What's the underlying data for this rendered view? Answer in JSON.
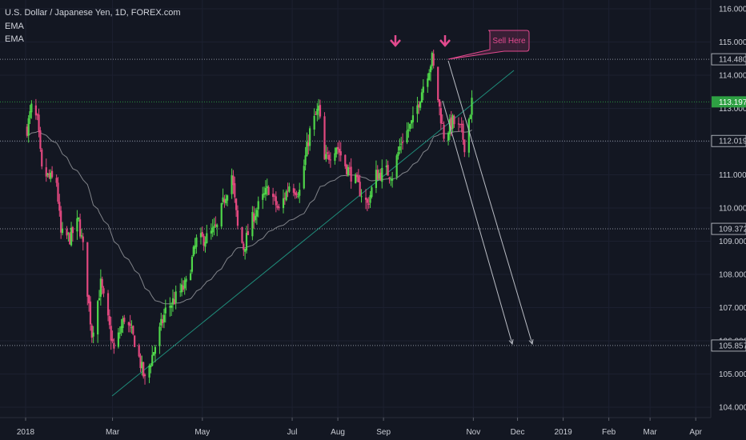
{
  "header": {
    "title": "U.S. Dollar / Japanese Yen, 1D, FOREX.com",
    "indicator1": "EMA",
    "indicator2": "EMA"
  },
  "colors": {
    "background": "#131722",
    "up_candle": "#4fd64a",
    "down_candle": "#e2487f",
    "ema_line": "#8d8f95",
    "trendline": "#1f8c7a",
    "level_line": "#9aa0ab",
    "green_level": "#2ea043",
    "annotation": "#e24a8e",
    "projection_arrow": "#b9bcc4"
  },
  "annotation": {
    "callout_text": "Sell Here",
    "markers": [
      "down-arrow",
      "down-arrow"
    ]
  },
  "chart_data": {
    "type": "candlestick",
    "title": "U.S. Dollar / Japanese Yen, 1D, FOREX.com",
    "y_axis": {
      "ticks": [
        104.0,
        105.0,
        106.0,
        107.0,
        108.0,
        109.0,
        110.0,
        111.0,
        112.0,
        113.0,
        114.0,
        115.0,
        116.0
      ],
      "tick_labels": [
        "104.000",
        "105.000",
        "106.000",
        "107.000",
        "108.000",
        "109.000",
        "110.000",
        "111.000",
        "112.000",
        "113.000",
        "114.000",
        "115.000",
        "116.000"
      ],
      "range": [
        103.8,
        116.25
      ]
    },
    "x_axis": {
      "tick_labels": [
        "2018",
        "Mar",
        "May",
        "Jul",
        "Aug",
        "Sep",
        "Nov",
        "Dec",
        "2019",
        "Feb",
        "Mar",
        "Apr"
      ]
    },
    "price_levels": [
      {
        "value": 114.48,
        "label": "114.480",
        "style": "dotted",
        "color": "grey"
      },
      {
        "value": 113.197,
        "label": "113.197",
        "style": "dotted",
        "color": "green",
        "badge": true
      },
      {
        "value": 112.019,
        "label": "112.019",
        "style": "dotted",
        "color": "grey"
      },
      {
        "value": 109.372,
        "label": "109.372",
        "style": "dotted",
        "color": "grey"
      },
      {
        "value": 105.857,
        "label": "105.857",
        "style": "dotted",
        "color": "grey"
      }
    ],
    "close_path": [
      {
        "date": "2018-01-02",
        "close": 112.4
      },
      {
        "date": "2018-01-05",
        "close": 113.0
      },
      {
        "date": "2018-01-09",
        "close": 112.6
      },
      {
        "date": "2018-01-12",
        "close": 111.1
      },
      {
        "date": "2018-01-17",
        "close": 110.9
      },
      {
        "date": "2018-01-22",
        "close": 110.8
      },
      {
        "date": "2018-01-25",
        "close": 109.2
      },
      {
        "date": "2018-01-31",
        "close": 109.1
      },
      {
        "date": "2018-02-06",
        "close": 109.6
      },
      {
        "date": "2018-02-09",
        "close": 108.8
      },
      {
        "date": "2018-02-15",
        "close": 106.2
      },
      {
        "date": "2018-02-21",
        "close": 107.7
      },
      {
        "date": "2018-03-02",
        "close": 105.7
      },
      {
        "date": "2018-03-09",
        "close": 106.7
      },
      {
        "date": "2018-03-16",
        "close": 106.0
      },
      {
        "date": "2018-03-23",
        "close": 104.8
      },
      {
        "date": "2018-03-27",
        "close": 105.4
      },
      {
        "date": "2018-04-06",
        "close": 106.9
      },
      {
        "date": "2018-04-13",
        "close": 107.3
      },
      {
        "date": "2018-04-20",
        "close": 107.7
      },
      {
        "date": "2018-04-27",
        "close": 109.0
      },
      {
        "date": "2018-05-04",
        "close": 109.1
      },
      {
        "date": "2018-05-11",
        "close": 109.4
      },
      {
        "date": "2018-05-16",
        "close": 110.3
      },
      {
        "date": "2018-05-21",
        "close": 111.0
      },
      {
        "date": "2018-05-25",
        "close": 109.4
      },
      {
        "date": "2018-05-29",
        "close": 108.8
      },
      {
        "date": "2018-06-05",
        "close": 109.8
      },
      {
        "date": "2018-06-15",
        "close": 110.6
      },
      {
        "date": "2018-06-22",
        "close": 109.9
      },
      {
        "date": "2018-06-29",
        "close": 110.7
      },
      {
        "date": "2018-07-06",
        "close": 110.5
      },
      {
        "date": "2018-07-13",
        "close": 112.3
      },
      {
        "date": "2018-07-19",
        "close": 113.0
      },
      {
        "date": "2018-07-23",
        "close": 111.4
      },
      {
        "date": "2018-07-31",
        "close": 111.9
      },
      {
        "date": "2018-08-06",
        "close": 111.3
      },
      {
        "date": "2018-08-13",
        "close": 110.8
      },
      {
        "date": "2018-08-21",
        "close": 110.1
      },
      {
        "date": "2018-08-27",
        "close": 111.0
      },
      {
        "date": "2018-09-03",
        "close": 111.1
      },
      {
        "date": "2018-09-07",
        "close": 111.0
      },
      {
        "date": "2018-09-13",
        "close": 112.0
      },
      {
        "date": "2018-09-21",
        "close": 112.6
      },
      {
        "date": "2018-09-28",
        "close": 113.7
      },
      {
        "date": "2018-10-04",
        "close": 114.5
      },
      {
        "date": "2018-10-09",
        "close": 113.0
      },
      {
        "date": "2018-10-12",
        "close": 112.2
      },
      {
        "date": "2018-10-18",
        "close": 112.6
      },
      {
        "date": "2018-10-24",
        "close": 112.3
      },
      {
        "date": "2018-10-26",
        "close": 111.9
      },
      {
        "date": "2018-10-31",
        "close": 113.2
      }
    ]
  }
}
